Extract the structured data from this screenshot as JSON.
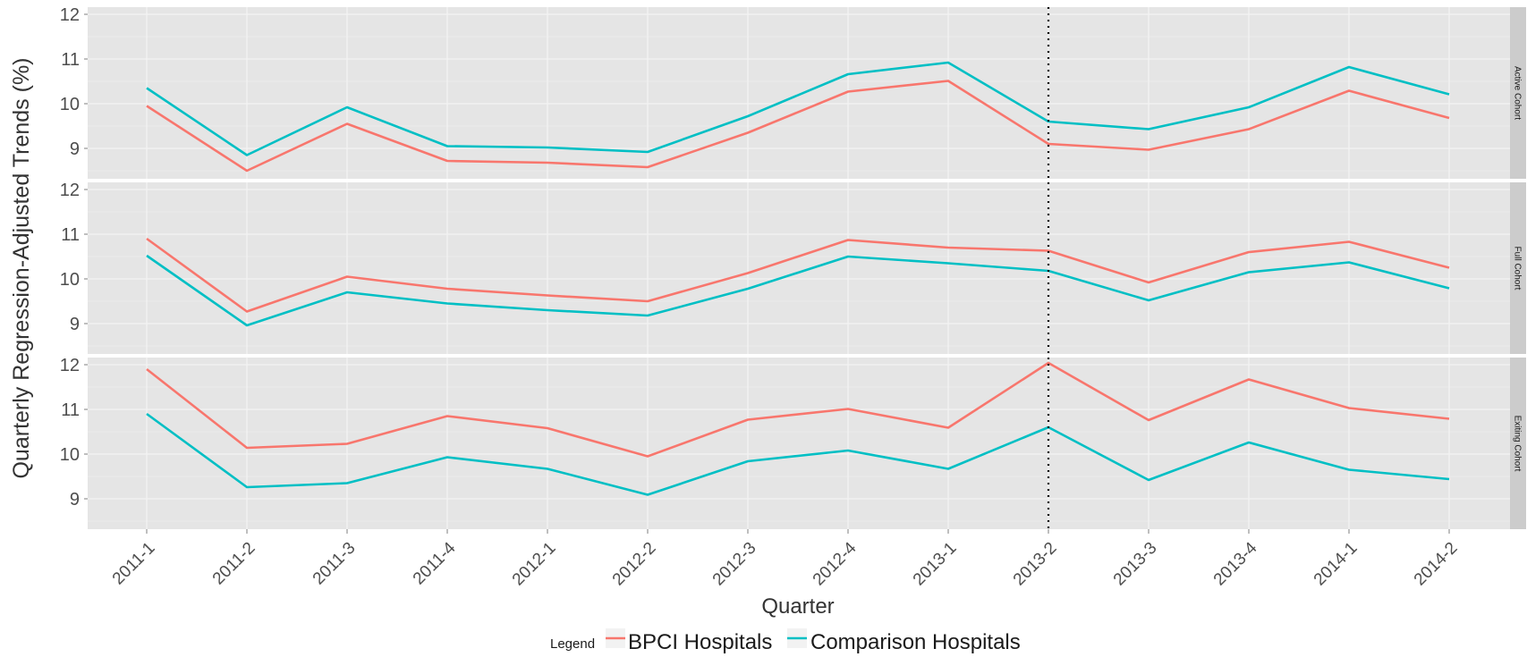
{
  "chart_data": {
    "type": "line",
    "ylabel": "Quarterly Regression-Adjusted Trends (%)",
    "xlabel": "Quarter",
    "legend": {
      "title": "Legend",
      "position": "bottom"
    },
    "categories": [
      "2011-1",
      "2011-2",
      "2011-3",
      "2011-4",
      "2012-1",
      "2012-2",
      "2012-3",
      "2012-4",
      "2013-1",
      "2013-2",
      "2013-3",
      "2013-4",
      "2014-1",
      "2014-2"
    ],
    "y_ticks": [
      9,
      10,
      11,
      12
    ],
    "ylim": [
      8.4,
      12.2
    ],
    "vline_at": "2013-2",
    "grid": true,
    "colors": {
      "BPCI Hospitals": "#f8766d",
      "Comparison Hospitals": "#00bfc4",
      "panel_bg": "#e5e5e5",
      "strip_bg": "#cccccc"
    },
    "panels": [
      {
        "strip": "Active Cohort",
        "series": [
          {
            "name": "BPCI Hospitals",
            "values": [
              9.95,
              8.5,
              9.55,
              8.72,
              8.68,
              8.58,
              9.35,
              10.27,
              10.51,
              9.1,
              8.97,
              9.43,
              10.29,
              9.68
            ]
          },
          {
            "name": "Comparison Hospitals",
            "values": [
              10.35,
              8.85,
              9.92,
              9.05,
              9.02,
              8.92,
              9.72,
              10.66,
              10.92,
              9.6,
              9.43,
              9.92,
              10.82,
              10.21
            ]
          }
        ]
      },
      {
        "strip": "Full Cohort",
        "series": [
          {
            "name": "BPCI Hospitals",
            "values": [
              10.9,
              9.27,
              10.05,
              9.78,
              9.63,
              9.5,
              10.13,
              10.87,
              10.7,
              10.63,
              9.92,
              10.6,
              10.83,
              10.25
            ]
          },
          {
            "name": "Comparison Hospitals",
            "values": [
              10.52,
              8.96,
              9.7,
              9.45,
              9.3,
              9.18,
              9.78,
              10.5,
              10.35,
              10.18,
              9.52,
              10.15,
              10.37,
              9.79
            ]
          }
        ]
      },
      {
        "strip": "Exiting Cohort",
        "series": [
          {
            "name": "BPCI Hospitals",
            "values": [
              11.9,
              10.14,
              10.23,
              10.85,
              10.58,
              9.95,
              10.77,
              11.01,
              10.59,
              12.04,
              10.76,
              11.67,
              11.03,
              10.79
            ]
          },
          {
            "name": "Comparison Hospitals",
            "values": [
              10.9,
              9.26,
              9.35,
              9.93,
              9.67,
              9.09,
              9.84,
              10.08,
              9.67,
              10.6,
              9.42,
              10.26,
              9.65,
              9.44
            ]
          }
        ]
      }
    ]
  }
}
